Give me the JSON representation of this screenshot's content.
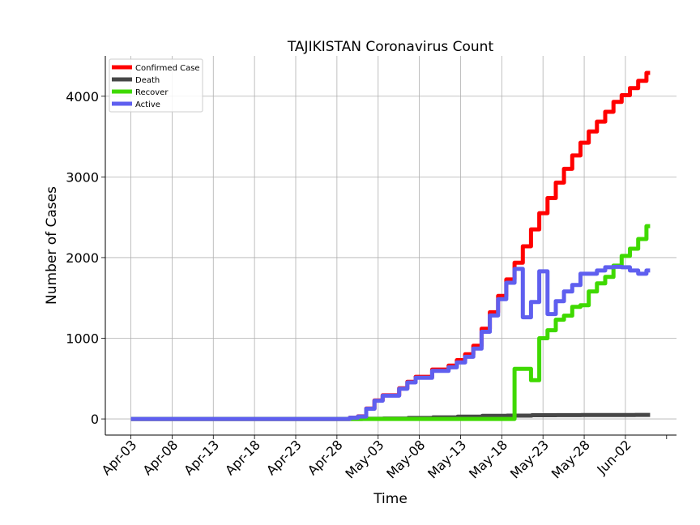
{
  "chart_data": {
    "type": "line",
    "title": "TAJIKISTAN Coronavirus Count",
    "xlabel": "Time",
    "ylabel": "Number of Cases",
    "x_start": "2020-04-03",
    "x_end": "2020-06-05",
    "x_ticks": [
      "Apr-03",
      "Apr-08",
      "Apr-13",
      "Apr-18",
      "Apr-23",
      "Apr-28",
      "May-03",
      "May-08",
      "May-13",
      "May-18",
      "May-23",
      "May-28",
      "Jun-02"
    ],
    "x_tick_dates": [
      "2020-04-03",
      "2020-04-08",
      "2020-04-13",
      "2020-04-18",
      "2020-04-23",
      "2020-04-28",
      "2020-05-03",
      "2020-05-08",
      "2020-05-13",
      "2020-05-18",
      "2020-05-23",
      "2020-05-28",
      "2020-06-02"
    ],
    "y_ticks": [
      0,
      1000,
      2000,
      3000,
      4000
    ],
    "ylim": [
      -200,
      4500
    ],
    "grid": true,
    "legend_position": "top-left",
    "series": [
      {
        "name": "Confirmed Case",
        "color": "#ff0000",
        "points": [
          [
            "2020-04-03",
            0
          ],
          [
            "2020-04-29",
            0
          ],
          [
            "2020-04-30",
            15
          ],
          [
            "2020-05-01",
            32
          ],
          [
            "2020-05-02",
            128
          ],
          [
            "2020-05-03",
            230
          ],
          [
            "2020-05-04",
            293
          ],
          [
            "2020-05-05",
            293
          ],
          [
            "2020-05-06",
            379
          ],
          [
            "2020-05-07",
            461
          ],
          [
            "2020-05-08",
            522
          ],
          [
            "2020-05-09",
            522
          ],
          [
            "2020-05-10",
            612
          ],
          [
            "2020-05-11",
            612
          ],
          [
            "2020-05-12",
            661
          ],
          [
            "2020-05-13",
            729
          ],
          [
            "2020-05-14",
            801
          ],
          [
            "2020-05-15",
            907
          ],
          [
            "2020-05-16",
            1118
          ],
          [
            "2020-05-17",
            1322
          ],
          [
            "2020-05-18",
            1524
          ],
          [
            "2020-05-19",
            1729
          ],
          [
            "2020-05-20",
            1936
          ],
          [
            "2020-05-21",
            2140
          ],
          [
            "2020-05-22",
            2350
          ],
          [
            "2020-05-23",
            2551
          ],
          [
            "2020-05-24",
            2738
          ],
          [
            "2020-05-25",
            2929
          ],
          [
            "2020-05-26",
            3100
          ],
          [
            "2020-05-27",
            3266
          ],
          [
            "2020-05-28",
            3424
          ],
          [
            "2020-05-29",
            3563
          ],
          [
            "2020-05-30",
            3686
          ],
          [
            "2020-05-31",
            3807
          ],
          [
            "2020-06-01",
            3930
          ],
          [
            "2020-06-02",
            4013
          ],
          [
            "2020-06-03",
            4100
          ],
          [
            "2020-06-04",
            4191
          ],
          [
            "2020-06-05",
            4289
          ]
        ]
      },
      {
        "name": "Death",
        "color": "#474747",
        "points": [
          [
            "2020-04-03",
            0
          ],
          [
            "2020-04-29",
            0
          ],
          [
            "2020-04-30",
            0
          ],
          [
            "2020-05-02",
            2
          ],
          [
            "2020-05-05",
            5
          ],
          [
            "2020-05-08",
            12
          ],
          [
            "2020-05-11",
            20
          ],
          [
            "2020-05-14",
            29
          ],
          [
            "2020-05-17",
            39
          ],
          [
            "2020-05-20",
            41
          ],
          [
            "2020-05-23",
            46
          ],
          [
            "2020-05-26",
            47
          ],
          [
            "2020-05-29",
            48
          ],
          [
            "2020-06-01",
            48
          ],
          [
            "2020-06-05",
            50
          ]
        ]
      },
      {
        "name": "Recover",
        "color": "#3fd900",
        "points": [
          [
            "2020-04-03",
            0
          ],
          [
            "2020-04-29",
            0
          ],
          [
            "2020-05-13",
            0
          ],
          [
            "2020-05-19",
            0
          ],
          [
            "2020-05-20",
            620
          ],
          [
            "2020-05-21",
            620
          ],
          [
            "2020-05-22",
            480
          ],
          [
            "2020-05-23",
            1000
          ],
          [
            "2020-05-24",
            1100
          ],
          [
            "2020-05-25",
            1230
          ],
          [
            "2020-05-26",
            1280
          ],
          [
            "2020-05-27",
            1390
          ],
          [
            "2020-05-28",
            1410
          ],
          [
            "2020-05-29",
            1580
          ],
          [
            "2020-05-30",
            1680
          ],
          [
            "2020-05-31",
            1760
          ],
          [
            "2020-06-01",
            1900
          ],
          [
            "2020-06-02",
            2020
          ],
          [
            "2020-06-03",
            2110
          ],
          [
            "2020-06-04",
            2230
          ],
          [
            "2020-06-05",
            2390
          ]
        ]
      },
      {
        "name": "Active",
        "color": "#5f5fef",
        "points": [
          [
            "2020-04-03",
            0
          ],
          [
            "2020-04-29",
            0
          ],
          [
            "2020-04-30",
            15
          ],
          [
            "2020-05-01",
            30
          ],
          [
            "2020-05-02",
            126
          ],
          [
            "2020-05-03",
            226
          ],
          [
            "2020-05-04",
            288
          ],
          [
            "2020-05-05",
            288
          ],
          [
            "2020-05-06",
            373
          ],
          [
            "2020-05-07",
            453
          ],
          [
            "2020-05-08",
            510
          ],
          [
            "2020-05-09",
            510
          ],
          [
            "2020-05-10",
            595
          ],
          [
            "2020-05-11",
            595
          ],
          [
            "2020-05-12",
            640
          ],
          [
            "2020-05-13",
            700
          ],
          [
            "2020-05-14",
            770
          ],
          [
            "2020-05-15",
            872
          ],
          [
            "2020-05-16",
            1080
          ],
          [
            "2020-05-17",
            1282
          ],
          [
            "2020-05-18",
            1485
          ],
          [
            "2020-05-19",
            1688
          ],
          [
            "2020-05-20",
            1860
          ],
          [
            "2020-05-21",
            1260
          ],
          [
            "2020-05-22",
            1450
          ],
          [
            "2020-05-23",
            1830
          ],
          [
            "2020-05-24",
            1300
          ],
          [
            "2020-05-25",
            1460
          ],
          [
            "2020-05-26",
            1580
          ],
          [
            "2020-05-27",
            1660
          ],
          [
            "2020-05-28",
            1800
          ],
          [
            "2020-05-29",
            1800
          ],
          [
            "2020-05-30",
            1840
          ],
          [
            "2020-05-31",
            1880
          ],
          [
            "2020-06-01",
            1885
          ],
          [
            "2020-06-02",
            1880
          ],
          [
            "2020-06-03",
            1840
          ],
          [
            "2020-06-04",
            1800
          ],
          [
            "2020-06-05",
            1840
          ]
        ]
      }
    ]
  }
}
